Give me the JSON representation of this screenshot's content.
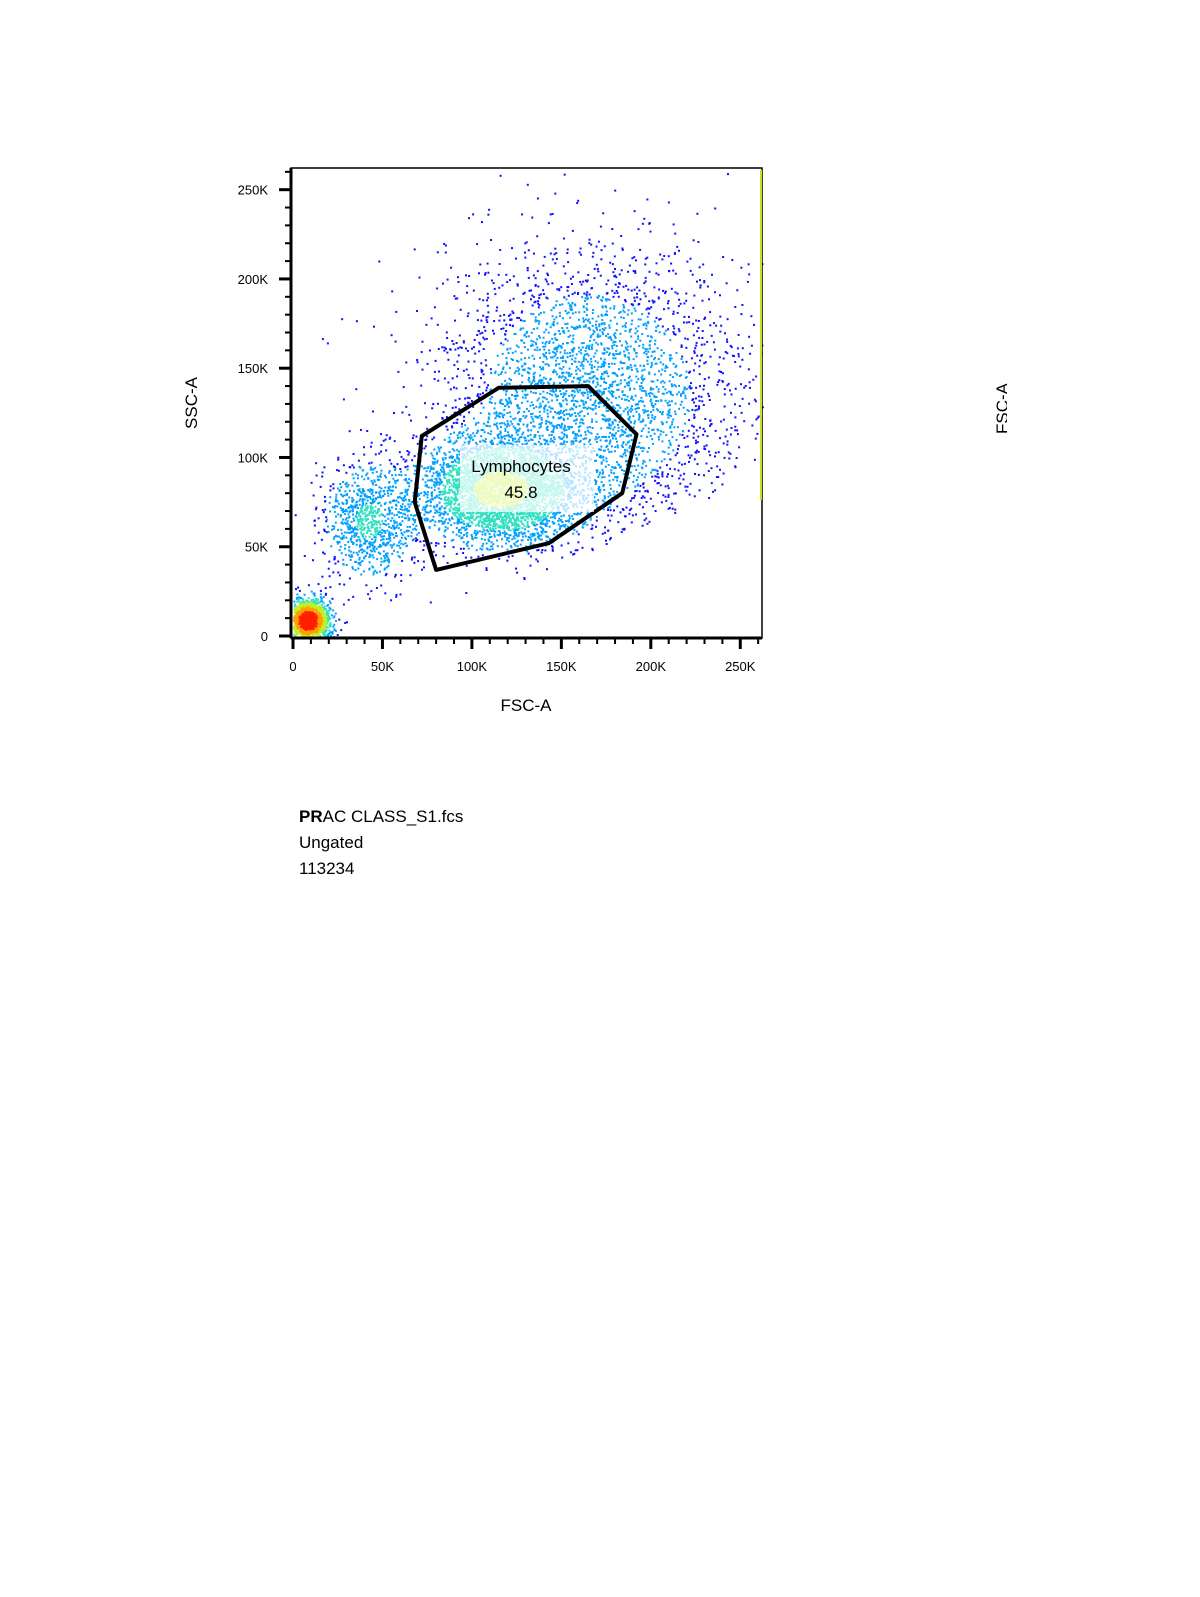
{
  "chart_data": {
    "type": "scatter",
    "style": "density pseudocolor",
    "xlabel": "FSC-A",
    "ylabel": "SSC-A",
    "xlim": [
      0,
      262144
    ],
    "ylim": [
      0,
      262144
    ],
    "x_ticks": [
      {
        "value": 0,
        "label": "0"
      },
      {
        "value": 50000,
        "label": "50K"
      },
      {
        "value": 100000,
        "label": "100K"
      },
      {
        "value": 150000,
        "label": "150K"
      },
      {
        "value": 200000,
        "label": "200K"
      },
      {
        "value": 250000,
        "label": "250K"
      }
    ],
    "y_ticks": [
      {
        "value": 0,
        "label": "0"
      },
      {
        "value": 50000,
        "label": "50K"
      },
      {
        "value": 100000,
        "label": "100K"
      },
      {
        "value": 150000,
        "label": "150K"
      },
      {
        "value": 200000,
        "label": "200K"
      },
      {
        "value": 250000,
        "label": "250K"
      }
    ],
    "density_colors": [
      "#1010ff",
      "#00a0ff",
      "#30e0c0",
      "#c0f020",
      "#ffa000",
      "#ff2000"
    ],
    "populations": [
      {
        "x": 8000,
        "y": 9000,
        "sx": 6000,
        "sy": 6000,
        "weight": 0.16
      },
      {
        "x": 42000,
        "y": 65000,
        "sx": 13000,
        "sy": 17000,
        "weight": 0.1
      },
      {
        "x": 115000,
        "y": 82000,
        "sx": 22000,
        "sy": 15000,
        "weight": 0.38
      },
      {
        "x": 165000,
        "y": 135000,
        "sx": 42000,
        "sy": 42000,
        "weight": 0.36
      }
    ],
    "gate": {
      "name": "Lymphocytes",
      "value": "45.8",
      "polygon": [
        [
          72000,
          112000
        ],
        [
          115000,
          139000
        ],
        [
          165000,
          140000
        ],
        [
          192000,
          113000
        ],
        [
          184000,
          80000
        ],
        [
          143000,
          52000
        ],
        [
          80000,
          37000
        ],
        [
          68000,
          75000
        ]
      ]
    }
  },
  "sample_info": {
    "filename_bold": "PR",
    "filename_rest": "AC CLASS_S1.fcs",
    "gate_status": "Ungated",
    "event_count": "113234"
  },
  "cutoff_label": "FSC-A"
}
